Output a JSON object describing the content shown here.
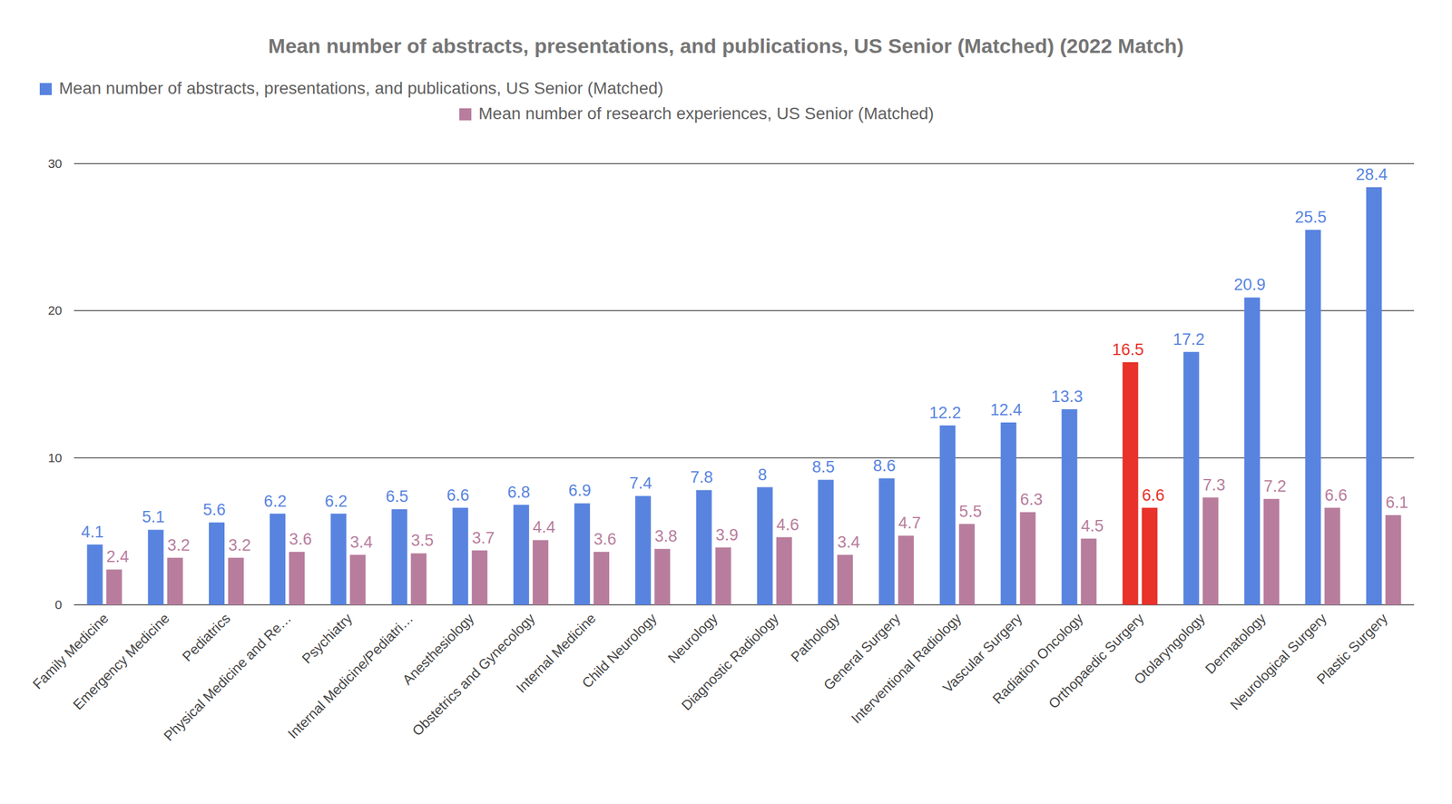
{
  "chart_data": {
    "type": "bar",
    "title": "Mean number of abstracts, presentations, and publications, US Senior (Matched) (2022 Match)",
    "categories": [
      "Family Medicine",
      "Emergency Medicine",
      "Pediatrics",
      "Physical Medicine and Re…",
      "Psychiatry",
      "Internal Medicine/Pediatri…",
      "Anesthesiology",
      "Obstetrics and Gynecology",
      "Internal Medicine",
      "Child Neurology",
      "Neurology",
      "Diagnostic Radiology",
      "Pathology",
      "General Surgery",
      "Interventional Radiology",
      "Vascular Surgery",
      "Radiation Oncology",
      "Orthopaedic Surgery",
      "Otolaryngology",
      "Dermatology",
      "Neurological Surgery",
      "Plastic Surgery"
    ],
    "series": [
      {
        "name": "Mean number of abstracts, presentations, and publications, US Senior (Matched)",
        "color": "#5884e0",
        "colors": [
          "#5884e0",
          "#5884e0",
          "#5884e0",
          "#5884e0",
          "#5884e0",
          "#5884e0",
          "#5884e0",
          "#5884e0",
          "#5884e0",
          "#5884e0",
          "#5884e0",
          "#5884e0",
          "#5884e0",
          "#5884e0",
          "#5884e0",
          "#5884e0",
          "#5884e0",
          "#e8322a",
          "#5884e0",
          "#5884e0",
          "#5884e0",
          "#5884e0"
        ],
        "values": [
          4.1,
          5.1,
          5.6,
          6.2,
          6.2,
          6.5,
          6.6,
          6.8,
          6.9,
          7.4,
          7.8,
          8,
          8.5,
          8.6,
          12.2,
          12.4,
          13.3,
          16.5,
          17.2,
          20.9,
          25.5,
          28.4
        ]
      },
      {
        "name": "Mean number of research experiences, US Senior (Matched)",
        "color": "#b87d9d",
        "colors": [
          "#b87d9d",
          "#b87d9d",
          "#b87d9d",
          "#b87d9d",
          "#b87d9d",
          "#b87d9d",
          "#b87d9d",
          "#b87d9d",
          "#b87d9d",
          "#b87d9d",
          "#b87d9d",
          "#b87d9d",
          "#b87d9d",
          "#b87d9d",
          "#b87d9d",
          "#b87d9d",
          "#b87d9d",
          "#e8322a",
          "#b87d9d",
          "#b87d9d",
          "#b87d9d",
          "#b87d9d"
        ],
        "values": [
          2.4,
          3.2,
          3.2,
          3.6,
          3.4,
          3.5,
          3.7,
          4.4,
          3.6,
          3.8,
          3.9,
          4.6,
          3.4,
          4.7,
          5.5,
          6.3,
          4.5,
          6.6,
          7.3,
          7.2,
          6.6,
          6.1
        ]
      }
    ],
    "ylim": [
      0,
      30
    ],
    "yticks": [
      0,
      10,
      20,
      30
    ],
    "grid": true,
    "legend": "top",
    "data_labels": true
  }
}
